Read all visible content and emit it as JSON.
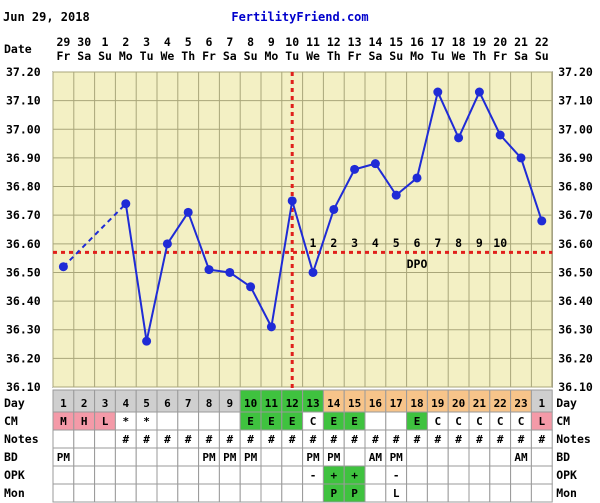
{
  "header": {
    "date": "Jun 29, 2018",
    "brand": "FertilityFriend.com"
  },
  "labels": {
    "date": "Date",
    "day": "Day",
    "cm": "CM",
    "notes": "Notes",
    "bd": "BD",
    "opk": "OPK",
    "mon": "Mon",
    "dpo": "DPO"
  },
  "colors": {
    "plot_bg": "#f3f0c4",
    "grid": "#a9a67a",
    "line": "#1f2bd6",
    "dot": "#1f2bd6",
    "coverline": "#e0201c",
    "day_gray": "#cfcfcf",
    "day_green": "#3fc23f",
    "day_orange": "#f7c48a",
    "cm_pink": "#f49aa8",
    "cm_green": "#3fc23f",
    "opk_green": "#3fc23f"
  },
  "chart_data": {
    "type": "line",
    "title": "",
    "xlabel": "Date",
    "ylabel": "",
    "ylim": [
      36.1,
      37.2
    ],
    "yticks": [
      "37.20",
      "37.10",
      "37.00",
      "36.90",
      "36.80",
      "36.70",
      "36.60",
      "36.50",
      "36.40",
      "36.30",
      "36.20",
      "36.10"
    ],
    "dates": [
      {
        "d": "29",
        "w": "Fr"
      },
      {
        "d": "30",
        "w": "Sa"
      },
      {
        "d": "1",
        "w": "Su"
      },
      {
        "d": "2",
        "w": "Mo"
      },
      {
        "d": "3",
        "w": "Tu"
      },
      {
        "d": "4",
        "w": "We"
      },
      {
        "d": "5",
        "w": "Th"
      },
      {
        "d": "6",
        "w": "Fr"
      },
      {
        "d": "7",
        "w": "Sa"
      },
      {
        "d": "8",
        "w": "Su"
      },
      {
        "d": "9",
        "w": "Mo"
      },
      {
        "d": "10",
        "w": "Tu"
      },
      {
        "d": "11",
        "w": "We"
      },
      {
        "d": "12",
        "w": "Th"
      },
      {
        "d": "13",
        "w": "Fr"
      },
      {
        "d": "14",
        "w": "Sa"
      },
      {
        "d": "15",
        "w": "Su"
      },
      {
        "d": "16",
        "w": "Mo"
      },
      {
        "d": "17",
        "w": "Tu"
      },
      {
        "d": "18",
        "w": "We"
      },
      {
        "d": "19",
        "w": "Th"
      },
      {
        "d": "20",
        "w": "Fr"
      },
      {
        "d": "21",
        "w": "Sa"
      },
      {
        "d": "22",
        "w": "Su"
      }
    ],
    "temps": [
      36.52,
      null,
      null,
      36.74,
      36.26,
      36.6,
      36.71,
      36.51,
      36.5,
      36.45,
      36.31,
      36.75,
      36.5,
      36.72,
      36.86,
      36.88,
      36.77,
      36.83,
      37.13,
      36.97,
      37.13,
      36.98,
      36.9,
      36.68
    ],
    "coverline": 36.57,
    "ovulation_index": 11,
    "dpo": [
      {
        "index": 12,
        "label": "1"
      },
      {
        "index": 13,
        "label": "2"
      },
      {
        "index": 14,
        "label": "3"
      },
      {
        "index": 15,
        "label": "4"
      },
      {
        "index": 16,
        "label": "5"
      },
      {
        "index": 17,
        "label": "6"
      },
      {
        "index": 18,
        "label": "7"
      },
      {
        "index": 19,
        "label": "8"
      },
      {
        "index": 20,
        "label": "9"
      },
      {
        "index": 21,
        "label": "10"
      }
    ],
    "grid": true
  },
  "rows": {
    "day": [
      {
        "v": "1",
        "c": "gray"
      },
      {
        "v": "2",
        "c": "gray"
      },
      {
        "v": "3",
        "c": "gray"
      },
      {
        "v": "4",
        "c": "gray"
      },
      {
        "v": "5",
        "c": "gray"
      },
      {
        "v": "6",
        "c": "gray"
      },
      {
        "v": "7",
        "c": "gray"
      },
      {
        "v": "8",
        "c": "gray"
      },
      {
        "v": "9",
        "c": "gray"
      },
      {
        "v": "10",
        "c": "green"
      },
      {
        "v": "11",
        "c": "green"
      },
      {
        "v": "12",
        "c": "green"
      },
      {
        "v": "13",
        "c": "green"
      },
      {
        "v": "14",
        "c": "orange"
      },
      {
        "v": "15",
        "c": "orange"
      },
      {
        "v": "16",
        "c": "orange"
      },
      {
        "v": "17",
        "c": "orange"
      },
      {
        "v": "18",
        "c": "orange"
      },
      {
        "v": "19",
        "c": "orange"
      },
      {
        "v": "20",
        "c": "orange"
      },
      {
        "v": "21",
        "c": "orange"
      },
      {
        "v": "22",
        "c": "orange"
      },
      {
        "v": "23",
        "c": "orange"
      },
      {
        "v": "1",
        "c": "gray"
      }
    ],
    "cm": [
      {
        "v": "M",
        "c": "pink"
      },
      {
        "v": "H",
        "c": "pink"
      },
      {
        "v": "L",
        "c": "pink"
      },
      {
        "v": "*",
        "c": ""
      },
      {
        "v": "*",
        "c": ""
      },
      {
        "v": "",
        "c": ""
      },
      {
        "v": "",
        "c": ""
      },
      {
        "v": "",
        "c": ""
      },
      {
        "v": "",
        "c": ""
      },
      {
        "v": "E",
        "c": "green"
      },
      {
        "v": "E",
        "c": "green"
      },
      {
        "v": "E",
        "c": "green"
      },
      {
        "v": "C",
        "c": ""
      },
      {
        "v": "E",
        "c": "green"
      },
      {
        "v": "E",
        "c": "green"
      },
      {
        "v": "",
        "c": ""
      },
      {
        "v": "",
        "c": ""
      },
      {
        "v": "E",
        "c": "green"
      },
      {
        "v": "C",
        "c": ""
      },
      {
        "v": "C",
        "c": ""
      },
      {
        "v": "C",
        "c": ""
      },
      {
        "v": "C",
        "c": ""
      },
      {
        "v": "C",
        "c": ""
      },
      {
        "v": "L",
        "c": "pink"
      }
    ],
    "notes": [
      "",
      "",
      "",
      "#",
      "#",
      "#",
      "#",
      "#",
      "#",
      "#",
      "#",
      "#",
      "#",
      "#",
      "#",
      "#",
      "#",
      "#",
      "#",
      "#",
      "#",
      "#",
      "#",
      "#"
    ],
    "bd": [
      "PM",
      "",
      "",
      "",
      "",
      "",
      "",
      "PM",
      "PM",
      "PM",
      "",
      "",
      "PM",
      "PM",
      "",
      "AM",
      "PM",
      "",
      "",
      "",
      "",
      "",
      "AM",
      ""
    ],
    "opk": [
      {
        "v": "",
        "c": ""
      },
      {
        "v": "",
        "c": ""
      },
      {
        "v": "",
        "c": ""
      },
      {
        "v": "",
        "c": ""
      },
      {
        "v": "",
        "c": ""
      },
      {
        "v": "",
        "c": ""
      },
      {
        "v": "",
        "c": ""
      },
      {
        "v": "",
        "c": ""
      },
      {
        "v": "",
        "c": ""
      },
      {
        "v": "",
        "c": ""
      },
      {
        "v": "",
        "c": ""
      },
      {
        "v": "",
        "c": ""
      },
      {
        "v": "-",
        "c": ""
      },
      {
        "v": "+",
        "c": "green"
      },
      {
        "v": "+",
        "c": "green"
      },
      {
        "v": "",
        "c": ""
      },
      {
        "v": "-",
        "c": ""
      },
      {
        "v": "",
        "c": ""
      },
      {
        "v": "",
        "c": ""
      },
      {
        "v": "",
        "c": ""
      },
      {
        "v": "",
        "c": ""
      },
      {
        "v": "",
        "c": ""
      },
      {
        "v": "",
        "c": ""
      },
      {
        "v": "",
        "c": ""
      }
    ],
    "mon": [
      {
        "v": "",
        "c": ""
      },
      {
        "v": "",
        "c": ""
      },
      {
        "v": "",
        "c": ""
      },
      {
        "v": "",
        "c": ""
      },
      {
        "v": "",
        "c": ""
      },
      {
        "v": "",
        "c": ""
      },
      {
        "v": "",
        "c": ""
      },
      {
        "v": "",
        "c": ""
      },
      {
        "v": "",
        "c": ""
      },
      {
        "v": "",
        "c": ""
      },
      {
        "v": "",
        "c": ""
      },
      {
        "v": "",
        "c": ""
      },
      {
        "v": "",
        "c": ""
      },
      {
        "v": "P",
        "c": "green"
      },
      {
        "v": "P",
        "c": "green"
      },
      {
        "v": "",
        "c": ""
      },
      {
        "v": "L",
        "c": ""
      },
      {
        "v": "",
        "c": ""
      },
      {
        "v": "",
        "c": ""
      },
      {
        "v": "",
        "c": ""
      },
      {
        "v": "",
        "c": ""
      },
      {
        "v": "",
        "c": ""
      },
      {
        "v": "",
        "c": ""
      },
      {
        "v": "",
        "c": ""
      }
    ]
  }
}
